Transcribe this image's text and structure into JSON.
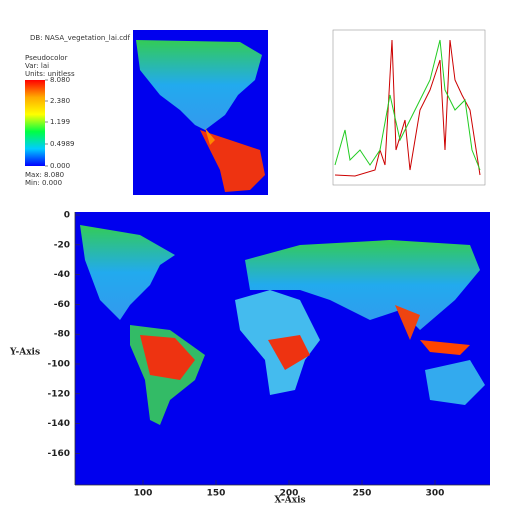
{
  "legend": {
    "database": "DB: NASA_vegetation_lai.cdf",
    "plot_type": "Pseudocolor",
    "variable": "Var: lai",
    "units": "Units: unitless",
    "scale_labels": [
      "8.080",
      "2.380",
      "1.199",
      "0.4989",
      "0.000"
    ],
    "max": "Max: 8.080",
    "min": "Min: 0.000"
  },
  "main_plot": {
    "x_axis_title": "X-Axis",
    "y_axis_title": "Y-Axis",
    "xticks": [
      "100",
      "150",
      "200",
      "250",
      "300"
    ],
    "yticks": [
      "0",
      "-20",
      "-40",
      "-60",
      "-80",
      "-100",
      "-120",
      "-140",
      "-160"
    ]
  }
}
